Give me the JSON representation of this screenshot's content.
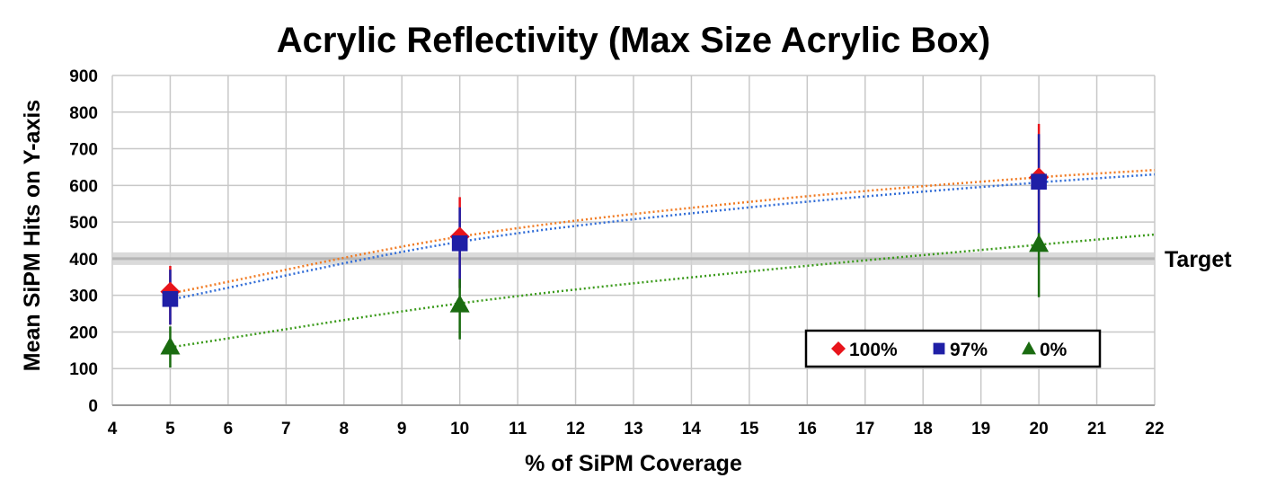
{
  "chart_data": {
    "type": "scatter",
    "title": "Acrylic Reflectivity (Max Size Acrylic Box)",
    "xlabel": "% of SiPM Coverage",
    "ylabel": "Mean SiPM Hits on Y-axis",
    "xlim": [
      4,
      22
    ],
    "ylim": [
      0,
      900
    ],
    "xticks": [
      "4",
      "5",
      "6",
      "7",
      "8",
      "9",
      "10",
      "11",
      "12",
      "13",
      "14",
      "15",
      "16",
      "17",
      "18",
      "19",
      "20",
      "21",
      "22"
    ],
    "yticks": [
      "0",
      "100",
      "200",
      "300",
      "400",
      "500",
      "600",
      "700",
      "800",
      "900"
    ],
    "grid": true,
    "legend_position": "bottom-right",
    "target": {
      "label": "Target",
      "value": 400
    },
    "series": [
      {
        "name": "100%",
        "color": "#e8141b",
        "marker": "diamond",
        "x": [
          5,
          10,
          20
        ],
        "y": [
          310,
          460,
          622
        ],
        "err_low": [
          220,
          320,
          470
        ],
        "err_high": [
          380,
          568,
          768
        ],
        "trend_color": "#f07a22",
        "trend_x": [
          5,
          10,
          15,
          20,
          22
        ],
        "trend_y": [
          305,
          460,
          555,
          622,
          642
        ]
      },
      {
        "name": "97%",
        "color": "#1f1fa6",
        "marker": "square",
        "x": [
          5,
          10,
          20
        ],
        "y": [
          290,
          442,
          610
        ],
        "err_low": [
          220,
          320,
          460
        ],
        "err_high": [
          370,
          540,
          740
        ],
        "trend_color": "#2f6bd6",
        "trend_x": [
          5,
          10,
          15,
          20,
          22
        ],
        "trend_y": [
          288,
          446,
          540,
          608,
          630
        ]
      },
      {
        "name": "0%",
        "color": "#1a6b10",
        "marker": "triangle",
        "x": [
          5,
          10,
          20
        ],
        "y": [
          160,
          275,
          440
        ],
        "err_low": [
          103,
          180,
          295
        ],
        "err_high": [
          215,
          345,
          470
        ],
        "trend_color": "#3a9a1a",
        "trend_x": [
          5,
          10,
          15,
          20,
          22
        ],
        "trend_y": [
          158,
          278,
          365,
          438,
          466
        ]
      }
    ]
  }
}
